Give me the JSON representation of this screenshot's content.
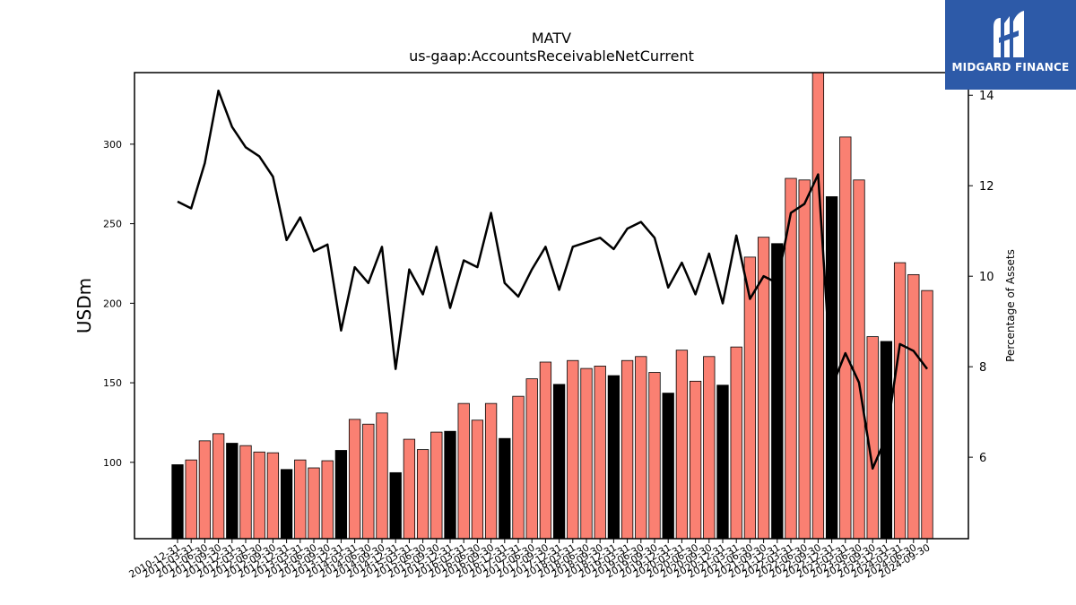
{
  "chart_data": {
    "type": "bar",
    "title": "MATV",
    "subtitle": "us-gaap:AccountsReceivableNetCurrent",
    "ylabel": "USDm",
    "y2label": "Percentage of Assets",
    "ylim": [
      52,
      345
    ],
    "y2lim": [
      4.2,
      14.5
    ],
    "yticks": [
      100,
      150,
      200,
      250,
      300
    ],
    "y2ticks": [
      6,
      8,
      10,
      12,
      14
    ],
    "colors": {
      "q4_bar": "#000000",
      "quarter_bar": "#fa8072",
      "line": "#000000"
    },
    "categories": [
      "2010-12-31",
      "2011-03-31",
      "2011-06-30",
      "2011-09-30",
      "2011-12-31",
      "2012-03-31",
      "2012-06-30",
      "2012-09-30",
      "2012-12-31",
      "2013-03-31",
      "2013-06-30",
      "2013-09-30",
      "2013-12-31",
      "2014-03-31",
      "2014-06-30",
      "2014-09-30",
      "2014-12-31",
      "2015-03-31",
      "2015-06-30",
      "2015-09-30",
      "2015-12-31",
      "2016-03-31",
      "2016-06-30",
      "2016-09-30",
      "2016-12-31",
      "2017-03-31",
      "2017-06-30",
      "2017-09-30",
      "2017-12-31",
      "2018-03-31",
      "2018-06-30",
      "2018-09-30",
      "2018-12-31",
      "2019-03-31",
      "2019-06-30",
      "2019-09-30",
      "2019-12-31",
      "2020-03-31",
      "2020-06-30",
      "2020-09-30",
      "2020-12-31",
      "2021-03-31",
      "2021-06-30",
      "2021-09-30",
      "2021-12-31",
      "2022-03-31",
      "2022-06-30",
      "2022-09-30",
      "2022-12-31",
      "2023-03-31",
      "2023-06-30",
      "2023-09-30",
      "2023-12-31",
      "2024-03-31",
      "2024-06-30",
      "2024-09-30"
    ],
    "tick_labels": [
      "2010-12-31",
      "2011-03-31",
      "2011-06-30",
      "2011-09-30",
      "2011-12-31",
      "2012-03-31",
      "2012-06-30",
      "2012-09-30",
      "2012-12-31",
      "2013-03-31",
      "2013-06-30",
      "2013-09-30",
      "2013-12-31",
      "2014-03-31",
      "2014-06-30",
      "2014-09-30",
      "2014-12-31",
      "2015-03-31",
      "2015-06-30",
      "2015-09-30",
      "2015-12-31",
      "2016-03-31",
      "2016-06-30",
      "2016-09-30",
      "2016-12-31",
      "2017-03-31",
      "2017-06-30",
      "2017-09-30",
      "2017-12-31",
      "2018-03-31",
      "2018-06-30",
      "2018-09-30",
      "2018-12-31",
      "2019-03-31",
      "2019-06-30",
      "2019-09-30",
      "2019-12-31",
      "2020-03-31",
      "2020-06-30",
      "2020-09-30",
      "2020-12-31",
      "2021-03-31",
      "2021-06-30",
      "2021-09-30",
      "2021-12-31",
      "2022-03-31",
      "2022-06-30",
      "2022-09-30",
      "2022-12-31",
      "2023-03-31",
      "2023-06-30",
      "2023-09-30",
      "2023-12-31",
      "2024-03-31",
      "2024-06-30",
      "2024-09-30"
    ],
    "values": [
      98.5,
      101.5,
      113.5,
      118,
      112,
      110.5,
      106.5,
      106,
      95.5,
      101.5,
      96.5,
      101,
      107.5,
      127,
      124,
      131,
      93.5,
      114.5,
      108,
      119,
      119.5,
      137,
      126.5,
      137,
      115,
      141.5,
      152.5,
      163,
      149,
      164,
      159,
      160.5,
      154.5,
      164,
      166.5,
      156.5,
      143.5,
      170.5,
      151,
      166.5,
      148.5,
      172.5,
      229,
      241.5,
      237.5,
      278.5,
      277.5,
      349,
      267,
      304.5,
      277.5,
      179,
      176,
      225.5,
      218,
      208
    ],
    "pct_assets": [
      11.65,
      11.5,
      12.5,
      14.1,
      13.3,
      12.85,
      12.65,
      12.2,
      10.8,
      11.3,
      10.55,
      10.7,
      8.8,
      10.2,
      9.85,
      10.65,
      7.95,
      10.15,
      9.6,
      10.65,
      9.3,
      10.35,
      10.2,
      11.4,
      9.85,
      9.55,
      10.15,
      10.65,
      9.7,
      10.65,
      10.75,
      10.85,
      10.6,
      11.05,
      11.2,
      10.85,
      9.75,
      10.3,
      9.6,
      10.5,
      9.4,
      10.9,
      9.5,
      10.0,
      9.85,
      11.4,
      11.6,
      12.25,
      7.55,
      8.3,
      7.65,
      5.75,
      6.45,
      8.5,
      8.35,
      7.95
    ]
  },
  "logo": {
    "text": "MIDGARD FINANCE"
  }
}
